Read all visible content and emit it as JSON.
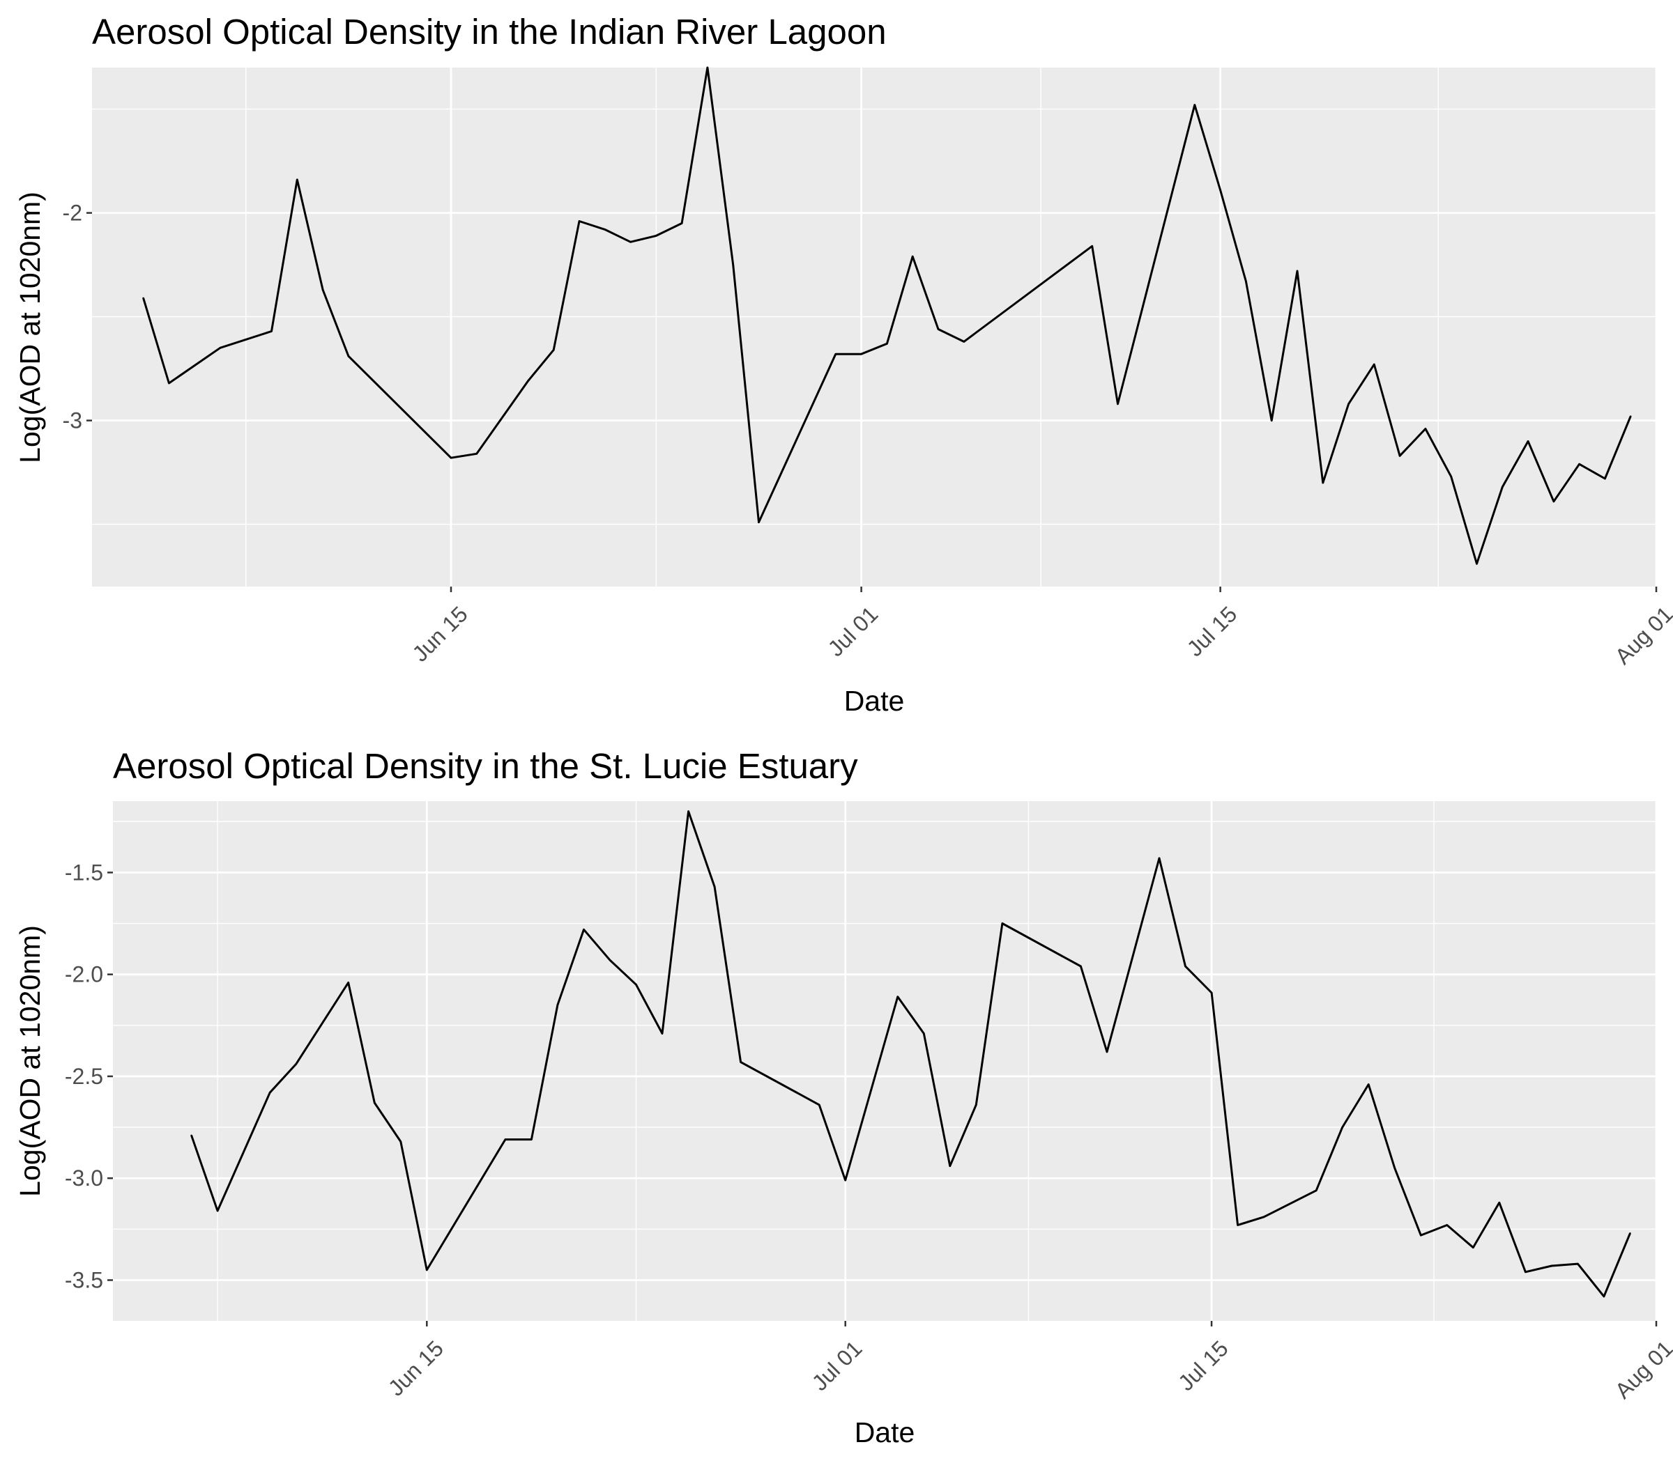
{
  "colors": {
    "panel_background": "#ebebeb",
    "major_grid": "#ffffff",
    "line": "#000000",
    "tick_text": "#4d4d4d",
    "tick_mark": "#333333"
  },
  "chart_data": [
    {
      "type": "line",
      "title": "Aerosol Optical Density in the Indian River Lagoon",
      "xlabel": "Date",
      "ylabel": "Log(AOD at 1020nm)",
      "xlim": [
        "2019-06-01",
        "2019-08-01"
      ],
      "ylim": [
        -3.8,
        -1.3
      ],
      "x_ticks": [
        {
          "date": "2019-06-15",
          "label": "Jun 15"
        },
        {
          "date": "2019-07-01",
          "label": "Jul 01"
        },
        {
          "date": "2019-07-15",
          "label": "Jul 15"
        },
        {
          "date": "2019-08-01",
          "label": "Aug 01"
        }
      ],
      "y_ticks": [
        {
          "value": -3,
          "label": "-3"
        },
        {
          "value": -2,
          "label": "-2"
        }
      ],
      "grid": true,
      "series": [
        {
          "x": [
            "2019-06-03",
            "2019-06-04",
            "2019-06-06",
            "2019-06-08",
            "2019-06-09",
            "2019-06-10",
            "2019-06-11",
            "2019-06-15",
            "2019-06-16",
            "2019-06-18",
            "2019-06-19",
            "2019-06-20",
            "2019-06-21",
            "2019-06-22",
            "2019-06-23",
            "2019-06-24",
            "2019-06-25",
            "2019-06-26",
            "2019-06-27",
            "2019-06-30",
            "2019-07-01",
            "2019-07-02",
            "2019-07-03",
            "2019-07-04",
            "2019-07-05",
            "2019-07-10",
            "2019-07-11",
            "2019-07-14",
            "2019-07-15",
            "2019-07-16",
            "2019-07-17",
            "2019-07-18",
            "2019-07-19",
            "2019-07-20",
            "2019-07-21",
            "2019-07-22",
            "2019-07-23",
            "2019-07-24",
            "2019-07-25",
            "2019-07-26",
            "2019-07-27",
            "2019-07-28",
            "2019-07-29",
            "2019-07-30",
            "2019-07-31"
          ],
          "y": [
            -2.41,
            -2.82,
            -2.65,
            -2.57,
            -1.84,
            -2.37,
            -2.69,
            -3.18,
            -3.16,
            -2.81,
            -2.66,
            -2.04,
            -2.08,
            -2.14,
            -2.11,
            -2.05,
            -1.3,
            -2.25,
            -3.49,
            -2.68,
            -2.68,
            -2.63,
            -2.21,
            -2.56,
            -2.62,
            -2.16,
            -2.92,
            -1.48,
            -1.89,
            -2.33,
            -3.0,
            -2.28,
            -3.3,
            -2.92,
            -2.73,
            -3.17,
            -3.04,
            -3.27,
            -3.69,
            -3.32,
            -3.1,
            -3.39,
            -3.21,
            -3.28,
            -2.98
          ]
        }
      ]
    },
    {
      "type": "line",
      "title": "Aerosol Optical Density in the St. Lucie Estuary",
      "xlabel": "Date",
      "ylabel": "Log(AOD at 1020nm)",
      "xlim": [
        "2019-06-03",
        "2019-08-01"
      ],
      "ylim": [
        -3.7,
        -1.15
      ],
      "x_ticks": [
        {
          "date": "2019-06-15",
          "label": "Jun 15"
        },
        {
          "date": "2019-07-01",
          "label": "Jul 01"
        },
        {
          "date": "2019-07-15",
          "label": "Jul 15"
        },
        {
          "date": "2019-08-01",
          "label": "Aug 01"
        }
      ],
      "y_ticks": [
        {
          "value": -3.5,
          "label": "-3.5"
        },
        {
          "value": -3.0,
          "label": "-3.0"
        },
        {
          "value": -2.5,
          "label": "-2.5"
        },
        {
          "value": -2.0,
          "label": "-2.0"
        },
        {
          "value": -1.5,
          "label": "-1.5"
        }
      ],
      "grid": true,
      "series": [
        {
          "x": [
            "2019-06-06",
            "2019-06-07",
            "2019-06-09",
            "2019-06-10",
            "2019-06-12",
            "2019-06-13",
            "2019-06-14",
            "2019-06-15",
            "2019-06-18",
            "2019-06-19",
            "2019-06-20",
            "2019-06-21",
            "2019-06-22",
            "2019-06-23",
            "2019-06-24",
            "2019-06-25",
            "2019-06-26",
            "2019-06-27",
            "2019-06-30",
            "2019-07-01",
            "2019-07-03",
            "2019-07-04",
            "2019-07-05",
            "2019-07-06",
            "2019-07-07",
            "2019-07-10",
            "2019-07-11",
            "2019-07-13",
            "2019-07-14",
            "2019-07-15",
            "2019-07-16",
            "2019-07-17",
            "2019-07-19",
            "2019-07-20",
            "2019-07-21",
            "2019-07-22",
            "2019-07-23",
            "2019-07-24",
            "2019-07-25",
            "2019-07-26",
            "2019-07-27",
            "2019-07-28",
            "2019-07-29",
            "2019-07-30",
            "2019-07-31"
          ],
          "y": [
            -2.79,
            -3.16,
            -2.58,
            -2.44,
            -2.04,
            -2.63,
            -2.82,
            -3.45,
            -2.81,
            -2.81,
            -2.15,
            -1.78,
            -1.93,
            -2.05,
            -2.29,
            -1.2,
            -1.57,
            -2.43,
            -2.64,
            -3.01,
            -2.11,
            -2.29,
            -2.94,
            -2.64,
            -1.75,
            -1.96,
            -2.38,
            -1.43,
            -1.96,
            -2.09,
            -3.23,
            -3.19,
            -3.06,
            -2.75,
            -2.54,
            -2.95,
            -3.28,
            -3.23,
            -3.34,
            -3.12,
            -3.46,
            -3.43,
            -3.42,
            -3.58,
            -3.27
          ]
        }
      ]
    }
  ]
}
